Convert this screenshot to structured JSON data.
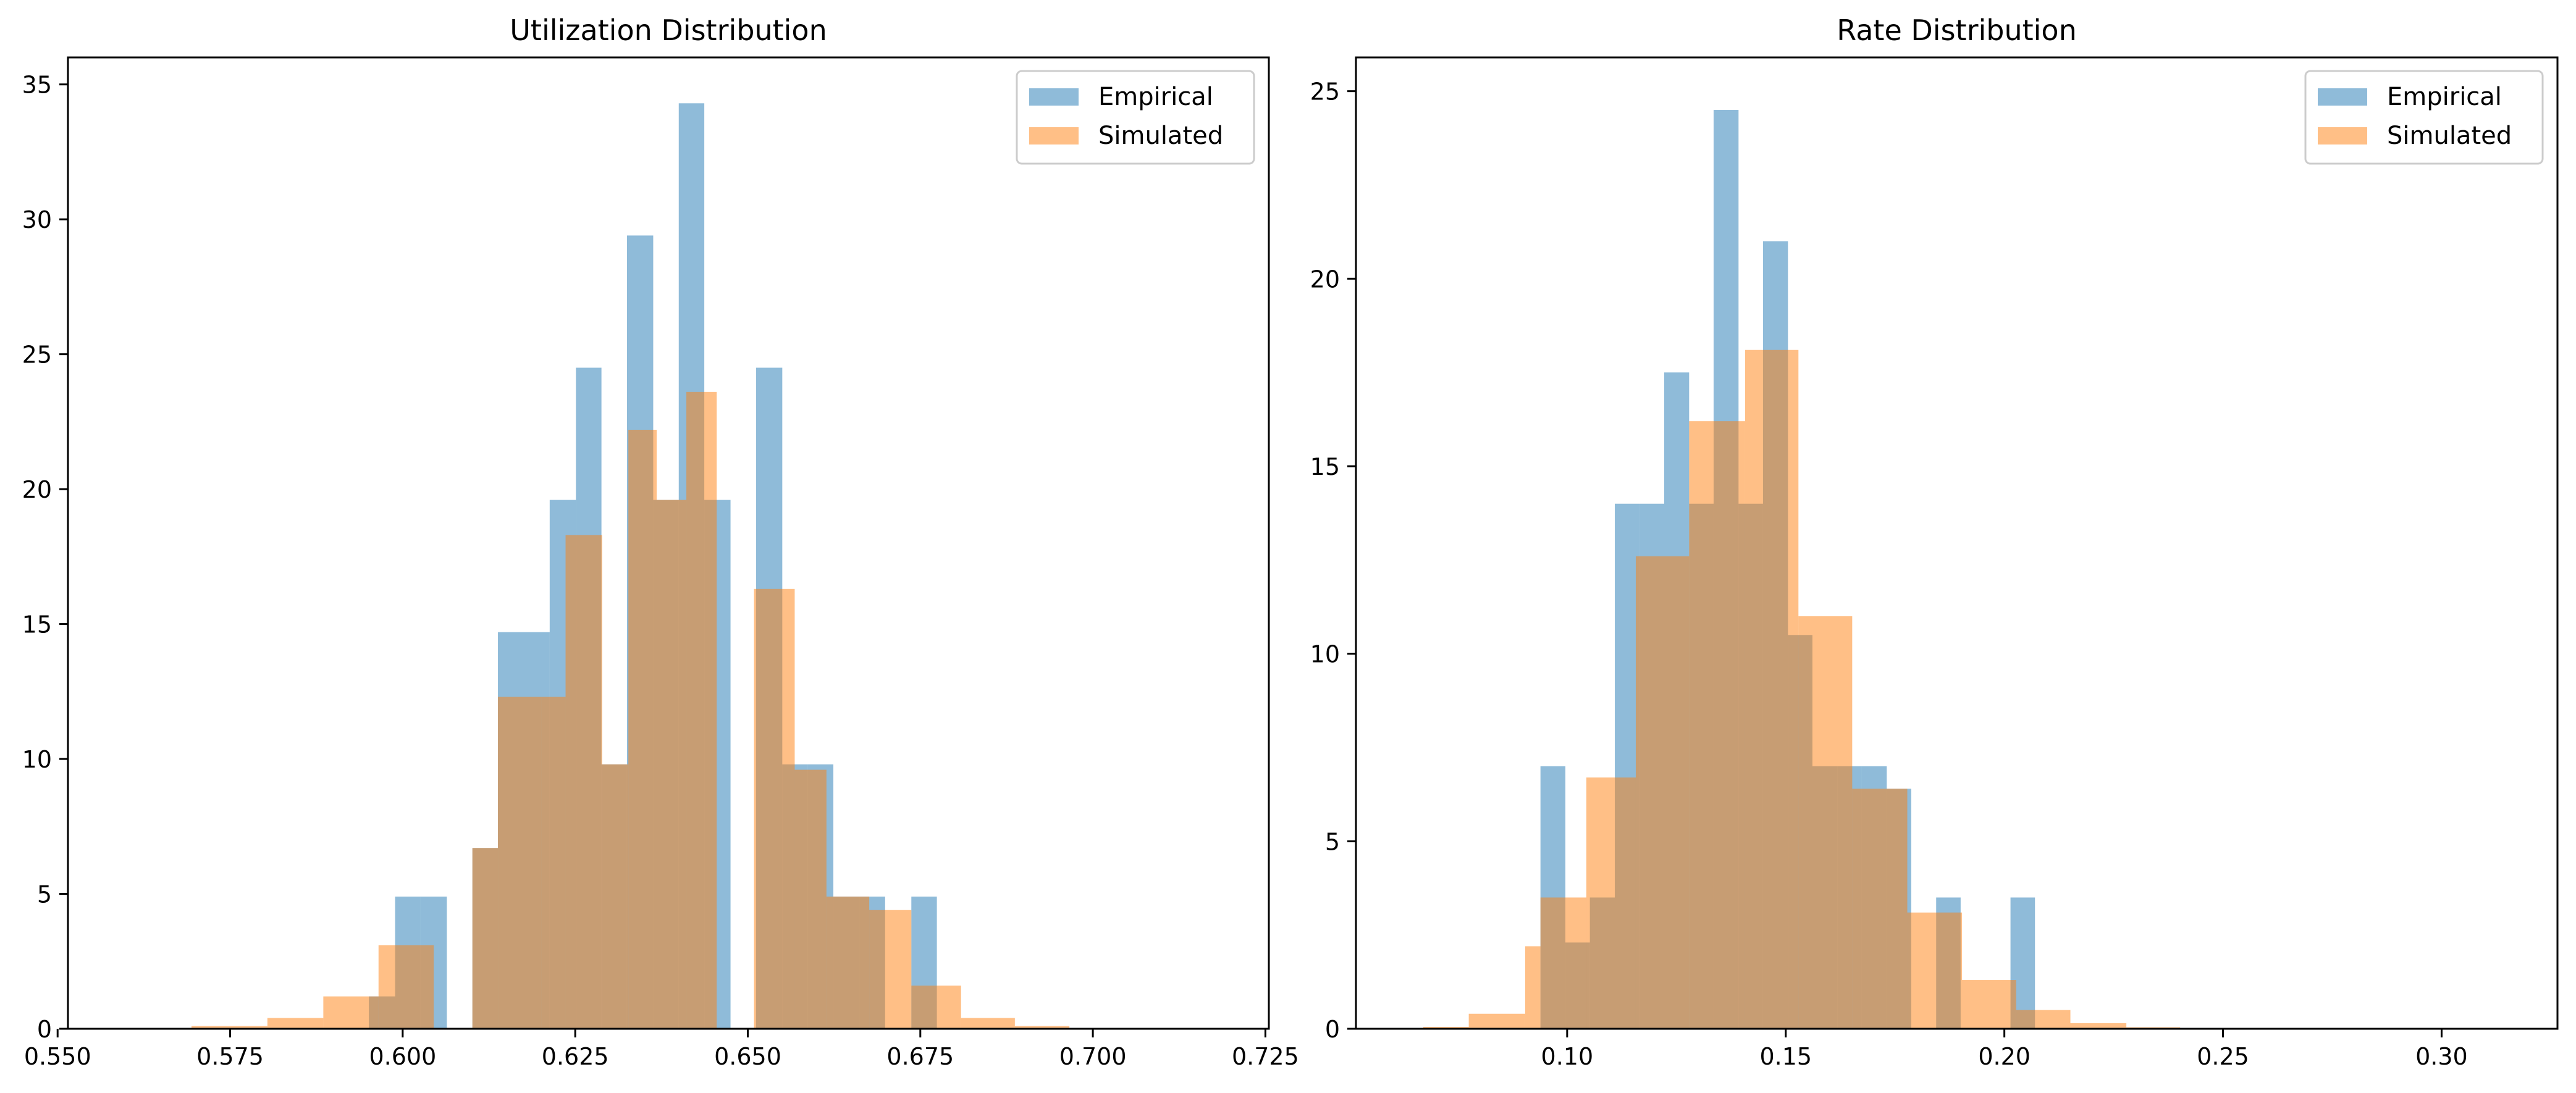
{
  "chart_data": [
    {
      "type": "histogram",
      "title": "Utilization Distribution",
      "xlabel": "",
      "ylabel": "",
      "xlim": [
        0.5515,
        0.7255
      ],
      "ylim": [
        0,
        36
      ],
      "xticks": [
        0.55,
        0.575,
        0.6,
        0.625,
        0.65,
        0.675,
        0.7,
        0.725
      ],
      "xtick_labels": [
        "0.550",
        "0.575",
        "0.600",
        "0.625",
        "0.650",
        "0.675",
        "0.700",
        "0.725"
      ],
      "yticks": [
        0,
        5,
        10,
        15,
        20,
        25,
        30,
        35
      ],
      "ytick_labels": [
        "0",
        "5",
        "10",
        "15",
        "20",
        "25",
        "30",
        "35"
      ],
      "grid": false,
      "legend_position": "top-right",
      "series": [
        {
          "name": "Empirical",
          "color": "#1f77b4",
          "opacity": 0.5,
          "bins": [
            {
              "x0": 0.5951,
              "x1": 0.5989,
              "y": 1.2
            },
            {
              "x0": 0.5989,
              "x1": 0.6026,
              "y": 4.9
            },
            {
              "x0": 0.6026,
              "x1": 0.6064,
              "y": 4.9
            },
            {
              "x0": 0.6064,
              "x1": 0.6101,
              "y": 0
            },
            {
              "x0": 0.6101,
              "x1": 0.6138,
              "y": 6.7
            },
            {
              "x0": 0.6138,
              "x1": 0.6176,
              "y": 14.7
            },
            {
              "x0": 0.6176,
              "x1": 0.6213,
              "y": 14.7
            },
            {
              "x0": 0.6213,
              "x1": 0.6251,
              "y": 19.6
            },
            {
              "x0": 0.6251,
              "x1": 0.6288,
              "y": 24.5
            },
            {
              "x0": 0.6288,
              "x1": 0.6325,
              "y": 9.8
            },
            {
              "x0": 0.6325,
              "x1": 0.6363,
              "y": 29.4
            },
            {
              "x0": 0.6363,
              "x1": 0.64,
              "y": 19.6
            },
            {
              "x0": 0.64,
              "x1": 0.6437,
              "y": 34.3
            },
            {
              "x0": 0.6437,
              "x1": 0.6475,
              "y": 19.6
            },
            {
              "x0": 0.6475,
              "x1": 0.6512,
              "y": 0
            },
            {
              "x0": 0.6512,
              "x1": 0.655,
              "y": 24.5
            },
            {
              "x0": 0.655,
              "x1": 0.6587,
              "y": 9.8
            },
            {
              "x0": 0.6587,
              "x1": 0.6624,
              "y": 9.8
            },
            {
              "x0": 0.6624,
              "x1": 0.6662,
              "y": 4.9
            },
            {
              "x0": 0.6662,
              "x1": 0.6699,
              "y": 4.9
            },
            {
              "x0": 0.6699,
              "x1": 0.6737,
              "y": 0
            },
            {
              "x0": 0.6737,
              "x1": 0.6774,
              "y": 4.9
            }
          ]
        },
        {
          "name": "Simulated",
          "color": "#ff7f0e",
          "opacity": 0.5,
          "bins": [
            {
              "x0": 0.5694,
              "x1": 0.5804,
              "y": 0.1
            },
            {
              "x0": 0.5804,
              "x1": 0.5885,
              "y": 0.4
            },
            {
              "x0": 0.5885,
              "x1": 0.5965,
              "y": 1.2
            },
            {
              "x0": 0.5965,
              "x1": 0.6045,
              "y": 3.1
            },
            {
              "x0": 0.6045,
              "x1": 0.6101,
              "y": 0
            },
            {
              "x0": 0.6101,
              "x1": 0.6138,
              "y": 6.7
            },
            {
              "x0": 0.6138,
              "x1": 0.6201,
              "y": 12.3
            },
            {
              "x0": 0.6201,
              "x1": 0.6236,
              "y": 12.3
            },
            {
              "x0": 0.6236,
              "x1": 0.6289,
              "y": 18.3
            },
            {
              "x0": 0.6289,
              "x1": 0.6327,
              "y": 9.8
            },
            {
              "x0": 0.6327,
              "x1": 0.6368,
              "y": 22.2
            },
            {
              "x0": 0.6368,
              "x1": 0.6411,
              "y": 19.6
            },
            {
              "x0": 0.6411,
              "x1": 0.6455,
              "y": 23.6
            },
            {
              "x0": 0.6455,
              "x1": 0.6509,
              "y": 0
            },
            {
              "x0": 0.6509,
              "x1": 0.6568,
              "y": 16.3
            },
            {
              "x0": 0.6568,
              "x1": 0.6614,
              "y": 9.6
            },
            {
              "x0": 0.6614,
              "x1": 0.6676,
              "y": 4.9
            },
            {
              "x0": 0.6676,
              "x1": 0.6737,
              "y": 4.4
            },
            {
              "x0": 0.6737,
              "x1": 0.6809,
              "y": 1.6
            },
            {
              "x0": 0.6809,
              "x1": 0.6887,
              "y": 0.4
            },
            {
              "x0": 0.6887,
              "x1": 0.6966,
              "y": 0.1
            }
          ]
        }
      ]
    },
    {
      "type": "histogram",
      "title": "Rate Distribution",
      "xlabel": "",
      "ylabel": "",
      "xlim": [
        0.0517,
        0.3265
      ],
      "ylim": [
        0,
        25.9
      ],
      "xticks": [
        0.1,
        0.15,
        0.2,
        0.25,
        0.3
      ],
      "xtick_labels": [
        "0.10",
        "0.15",
        "0.20",
        "0.25",
        "0.30"
      ],
      "yticks": [
        0,
        5,
        10,
        15,
        20,
        25
      ],
      "ytick_labels": [
        "0",
        "5",
        "10",
        "15",
        "20",
        "25"
      ],
      "grid": false,
      "legend_position": "top-right",
      "series": [
        {
          "name": "Empirical",
          "color": "#1f77b4",
          "opacity": 0.5,
          "bins": [
            {
              "x0": 0.0939,
              "x1": 0.0996,
              "y": 7.0
            },
            {
              "x0": 0.0996,
              "x1": 0.1052,
              "y": 2.3
            },
            {
              "x0": 0.1052,
              "x1": 0.1109,
              "y": 3.5
            },
            {
              "x0": 0.1109,
              "x1": 0.1165,
              "y": 14.0
            },
            {
              "x0": 0.1165,
              "x1": 0.1222,
              "y": 14.0
            },
            {
              "x0": 0.1222,
              "x1": 0.1279,
              "y": 17.5
            },
            {
              "x0": 0.1279,
              "x1": 0.1335,
              "y": 14.0
            },
            {
              "x0": 0.1335,
              "x1": 0.1392,
              "y": 24.5
            },
            {
              "x0": 0.1392,
              "x1": 0.1448,
              "y": 14.0
            },
            {
              "x0": 0.1448,
              "x1": 0.1505,
              "y": 21.0
            },
            {
              "x0": 0.1505,
              "x1": 0.1561,
              "y": 10.5
            },
            {
              "x0": 0.1561,
              "x1": 0.1618,
              "y": 7.0
            },
            {
              "x0": 0.1618,
              "x1": 0.1674,
              "y": 7.0
            },
            {
              "x0": 0.1674,
              "x1": 0.1731,
              "y": 7.0
            },
            {
              "x0": 0.1731,
              "x1": 0.1787,
              "y": 6.4
            },
            {
              "x0": 0.1787,
              "x1": 0.1844,
              "y": 0
            },
            {
              "x0": 0.1844,
              "x1": 0.19,
              "y": 3.5
            },
            {
              "x0": 0.19,
              "x1": 0.1957,
              "y": 0
            },
            {
              "x0": 0.1957,
              "x1": 0.2014,
              "y": 0
            },
            {
              "x0": 0.2014,
              "x1": 0.207,
              "y": 3.5
            }
          ]
        },
        {
          "name": "Simulated",
          "color": "#ff7f0e",
          "opacity": 0.5,
          "bins": [
            {
              "x0": 0.0671,
              "x1": 0.0775,
              "y": 0.05
            },
            {
              "x0": 0.0775,
              "x1": 0.0904,
              "y": 0.4
            },
            {
              "x0": 0.0904,
              "x1": 0.0939,
              "y": 2.2
            },
            {
              "x0": 0.0939,
              "x1": 0.1044,
              "y": 3.5
            },
            {
              "x0": 0.1044,
              "x1": 0.1109,
              "y": 6.7
            },
            {
              "x0": 0.1109,
              "x1": 0.1157,
              "y": 6.7
            },
            {
              "x0": 0.1157,
              "x1": 0.1279,
              "y": 12.6
            },
            {
              "x0": 0.1279,
              "x1": 0.1407,
              "y": 16.2
            },
            {
              "x0": 0.1407,
              "x1": 0.1529,
              "y": 18.1
            },
            {
              "x0": 0.1529,
              "x1": 0.1652,
              "y": 11.0
            },
            {
              "x0": 0.1652,
              "x1": 0.1778,
              "y": 6.4
            },
            {
              "x0": 0.1778,
              "x1": 0.1903,
              "y": 3.1
            },
            {
              "x0": 0.1903,
              "x1": 0.2027,
              "y": 1.3
            },
            {
              "x0": 0.2027,
              "x1": 0.2151,
              "y": 0.5
            },
            {
              "x0": 0.2151,
              "x1": 0.2279,
              "y": 0.15
            },
            {
              "x0": 0.2279,
              "x1": 0.2402,
              "y": 0.04
            }
          ]
        }
      ]
    }
  ]
}
